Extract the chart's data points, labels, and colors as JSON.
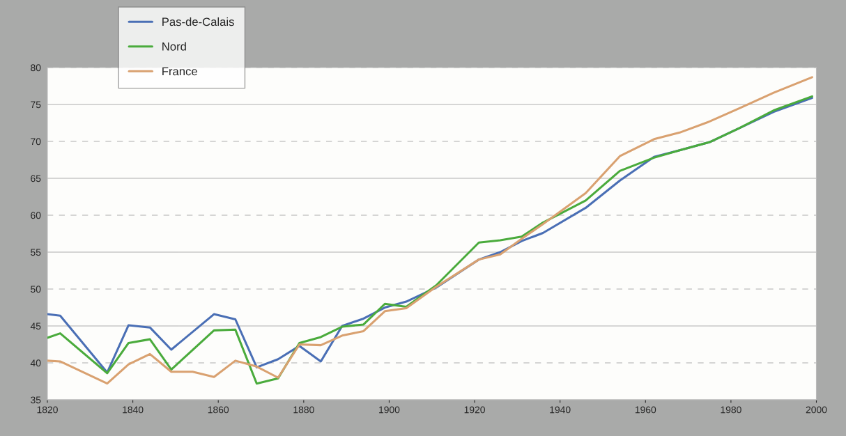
{
  "chart_data": {
    "type": "line",
    "x": [
      1820,
      1823,
      1834,
      1839,
      1844,
      1849,
      1859,
      1864,
      1869,
      1874,
      1879,
      1884,
      1889,
      1894,
      1899,
      1904,
      1911,
      1921,
      1926,
      1931,
      1936,
      1946,
      1954,
      1962,
      1968,
      1975,
      1982,
      1990,
      1999
    ],
    "series": [
      {
        "name": "Pas-de-Calais",
        "color": "#4a6fb5",
        "values": [
          46.6,
          46.4,
          38.7,
          45.1,
          44.8,
          41.8,
          46.6,
          45.9,
          39.4,
          40.5,
          42.3,
          40.2,
          45.0,
          46.0,
          47.5,
          48.3,
          50.2,
          54.0,
          55.0,
          56.5,
          57.6,
          61.0,
          64.7,
          67.9,
          68.8,
          69.9,
          71.8,
          74.0,
          75.9
        ]
      },
      {
        "name": "Nord",
        "color": "#4aab3c",
        "values": [
          43.4,
          44.0,
          38.6,
          42.7,
          43.2,
          39.1,
          44.4,
          44.5,
          37.2,
          37.9,
          42.7,
          43.5,
          44.9,
          45.2,
          48.0,
          47.6,
          50.5,
          56.3,
          56.6,
          57.1,
          59.0,
          62.0,
          66.0,
          67.8,
          68.8,
          69.9,
          71.8,
          74.2,
          76.1
        ]
      },
      {
        "name": "France",
        "color": "#d9a170",
        "x": [
          1820,
          1823,
          1834,
          1839,
          1844,
          1849,
          1854,
          1859,
          1864,
          1869,
          1874,
          1879,
          1884,
          1889,
          1894,
          1899,
          1904,
          1911,
          1921,
          1926,
          1931,
          1936,
          1946,
          1954,
          1962,
          1968,
          1975,
          1982,
          1990,
          1999
        ],
        "values": [
          40.3,
          40.2,
          37.2,
          39.8,
          41.2,
          38.8,
          38.8,
          38.1,
          40.3,
          39.5,
          38.0,
          42.5,
          42.4,
          43.7,
          44.3,
          47.0,
          47.4,
          50.3,
          54.0,
          54.7,
          56.8,
          58.8,
          63.0,
          68.0,
          70.3,
          71.2,
          72.7,
          74.5,
          76.6,
          78.7
        ]
      }
    ],
    "xlim": [
      1820,
      2000
    ],
    "xticks": [
      1820,
      1840,
      1860,
      1880,
      1900,
      1920,
      1940,
      1960,
      1980,
      2000
    ],
    "ylim": [
      35,
      80
    ],
    "yticks": [
      35,
      40,
      45,
      50,
      55,
      60,
      65,
      70,
      75,
      80
    ],
    "grid": "y",
    "legend": "top left",
    "marker": "none",
    "line_style": "solid"
  }
}
